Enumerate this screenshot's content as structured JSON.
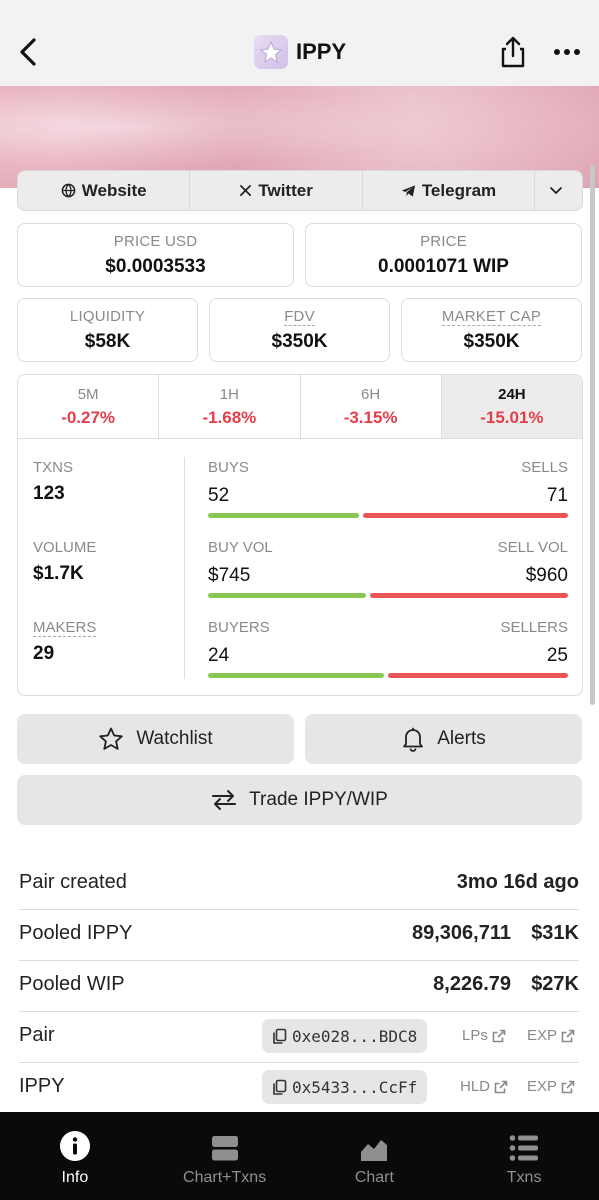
{
  "header": {
    "title": "IPPY",
    "icons": [
      "back-icon",
      "share-icon",
      "more-icon"
    ]
  },
  "links": {
    "website": "Website",
    "twitter": "Twitter",
    "telegram": "Telegram"
  },
  "price": {
    "usd_label": "PRICE USD",
    "usd_value": "$0.0003533",
    "native_label": "PRICE",
    "native_value": "0.0001071 WIP"
  },
  "metrics": {
    "liquidity_label": "LIQUIDITY",
    "liquidity_value": "$58K",
    "fdv_label": "FDV",
    "fdv_value": "$350K",
    "mcap_label": "MARKET CAP",
    "mcap_value": "$350K"
  },
  "timeframes": [
    {
      "label": "5M",
      "change": "-0.27%"
    },
    {
      "label": "1H",
      "change": "-1.68%"
    },
    {
      "label": "6H",
      "change": "-3.15%"
    },
    {
      "label": "24H",
      "change": "-15.01%"
    }
  ],
  "stats": {
    "txns_label": "TXNS",
    "txns_value": "123",
    "volume_label": "VOLUME",
    "volume_value": "$1.7K",
    "makers_label": "MAKERS",
    "makers_value": "29",
    "buys_label": "BUYS",
    "buys_value": "52",
    "sells_label": "SELLS",
    "sells_value": "71",
    "buys_fraction": 0.42,
    "buyvol_label": "BUY VOL",
    "buyvol_value": "$745",
    "sellvol_label": "SELL VOL",
    "sellvol_value": "$960",
    "buyvol_fraction": 0.44,
    "buyers_label": "BUYERS",
    "buyers_value": "24",
    "sellers_label": "SELLERS",
    "sellers_value": "25",
    "buyers_fraction": 0.49
  },
  "actions": {
    "watchlist": "Watchlist",
    "alerts": "Alerts",
    "trade": "Trade IPPY/WIP"
  },
  "info": {
    "pair_created_label": "Pair created",
    "pair_created_value": "3mo 16d ago",
    "pooled_ippy_label": "Pooled IPPY",
    "pooled_ippy_amount": "89,306,711",
    "pooled_ippy_usd": "$31K",
    "pooled_wip_label": "Pooled WIP",
    "pooled_wip_amount": "8,226.79",
    "pooled_wip_usd": "$27K",
    "pair_label": "Pair",
    "pair_address": "0xe028...BDC8",
    "pair_link1": "LPs",
    "pair_link2": "EXP",
    "token_label": "IPPY",
    "token_address": "0x5433...CcFf",
    "token_link1": "HLD",
    "token_link2": "EXP"
  },
  "nav": {
    "info": "Info",
    "chart_txns": "Chart+Txns",
    "chart": "Chart",
    "txns": "Txns",
    "active": "Info"
  },
  "colors": {
    "negative": "#e53e4b",
    "buy_bar": "#8ac653",
    "sell_bar": "#ea5656"
  }
}
